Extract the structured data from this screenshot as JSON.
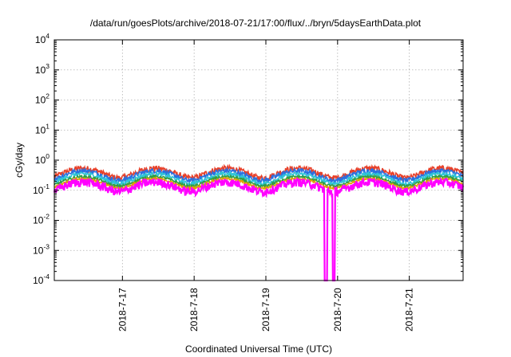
{
  "chart_data": {
    "type": "line",
    "title": "/data/run/goesPlots/archive/2018-07-21/17:00/flux/../bryn/5daysEarthData.plot",
    "xlabel": "Coordinated Universal Time (UTC)",
    "ylabel": "cGy/day",
    "yscale": "log",
    "ylim": [
      0.0001,
      10000
    ],
    "xlim": [
      2018.0716,
      2018.0721766
    ],
    "x_unit": "day-of-July (2018)",
    "x_range_days": [
      16.05,
      21.75
    ],
    "y_ticks": [
      {
        "base": "10",
        "exp": "-4",
        "value": 0.0001
      },
      {
        "base": "10",
        "exp": "-3",
        "value": 0.001
      },
      {
        "base": "10",
        "exp": "-2",
        "value": 0.01
      },
      {
        "base": "10",
        "exp": "-1",
        "value": 0.1
      },
      {
        "base": "10",
        "exp": "0",
        "value": 1
      },
      {
        "base": "10",
        "exp": "1",
        "value": 10
      },
      {
        "base": "10",
        "exp": "2",
        "value": 100
      },
      {
        "base": "10",
        "exp": "3",
        "value": 1000
      },
      {
        "base": "10",
        "exp": "4",
        "value": 10000
      }
    ],
    "x_ticks": [
      {
        "label": "2018-7-17",
        "day": 17
      },
      {
        "label": "2018-7-18",
        "day": 18
      },
      {
        "label": "2018-7-19",
        "day": 19
      },
      {
        "label": "2018-7-20",
        "day": 20
      },
      {
        "label": "2018-7-21",
        "day": 21
      }
    ],
    "grid": true,
    "series": [
      {
        "color": "#e8412a",
        "level": 0.4,
        "noise": 0.22
      },
      {
        "color": "#2a6fe0",
        "level": 0.33,
        "noise": 0.18
      },
      {
        "color": "#2ec4d8",
        "level": 0.26,
        "noise": 0.14
      },
      {
        "color": "#2f9e44",
        "level": 0.21,
        "noise": 0.1
      },
      {
        "color": "#e1a100",
        "level": 0.18,
        "noise": 0.08
      },
      {
        "color": "#ff00ff",
        "level": 0.14,
        "noise": 0.3
      }
    ],
    "dropouts_days": [
      [
        19.82,
        19.86
      ],
      [
        19.93,
        19.96
      ]
    ]
  }
}
